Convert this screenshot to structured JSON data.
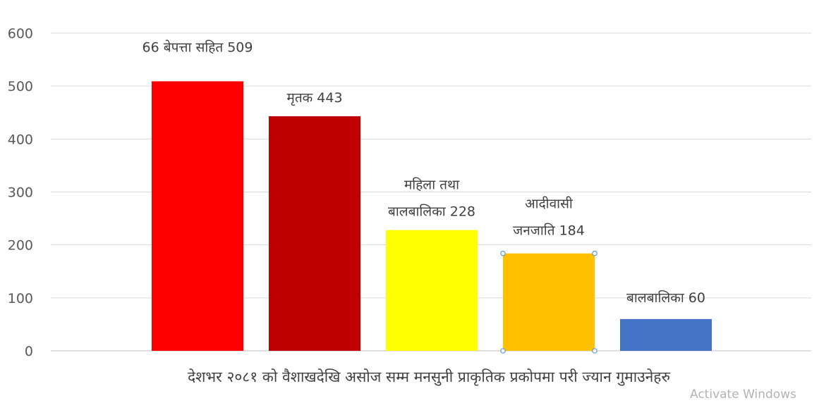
{
  "chart_data": {
    "type": "bar",
    "categories": [
      "66 बेपत्ता सहित",
      "मृतक",
      "महिला तथा बालबालिका",
      "आदीवासी जनजाति",
      "बालबालिका"
    ],
    "values": [
      509,
      443,
      228,
      184,
      60
    ],
    "data_labels": [
      [
        "66 बेपत्ता सहित 509"
      ],
      [
        "मृतक 443"
      ],
      [
        "महिला तथा",
        "बालबालिका 228"
      ],
      [
        "आदीवासी",
        "जनजाति 184"
      ],
      [
        "बालबालिका 60"
      ]
    ],
    "colors": [
      "#ff0000",
      "#c00000",
      "#ffff00",
      "#ffc000",
      "#4472c4"
    ],
    "xlabel": "देशभर २०८१ को वैशाखदेखि असोज सम्म मनसुनी प्राकृतिक प्रकोपमा परी ज्यान गुमाउनेहरु",
    "ylabel": "",
    "ylim": [
      0,
      600
    ],
    "yticks": [
      0,
      100,
      200,
      300,
      400,
      500,
      600
    ],
    "grid": true,
    "legend": "none",
    "title": ""
  },
  "overlay": {
    "watermark": "Activate Windows"
  }
}
